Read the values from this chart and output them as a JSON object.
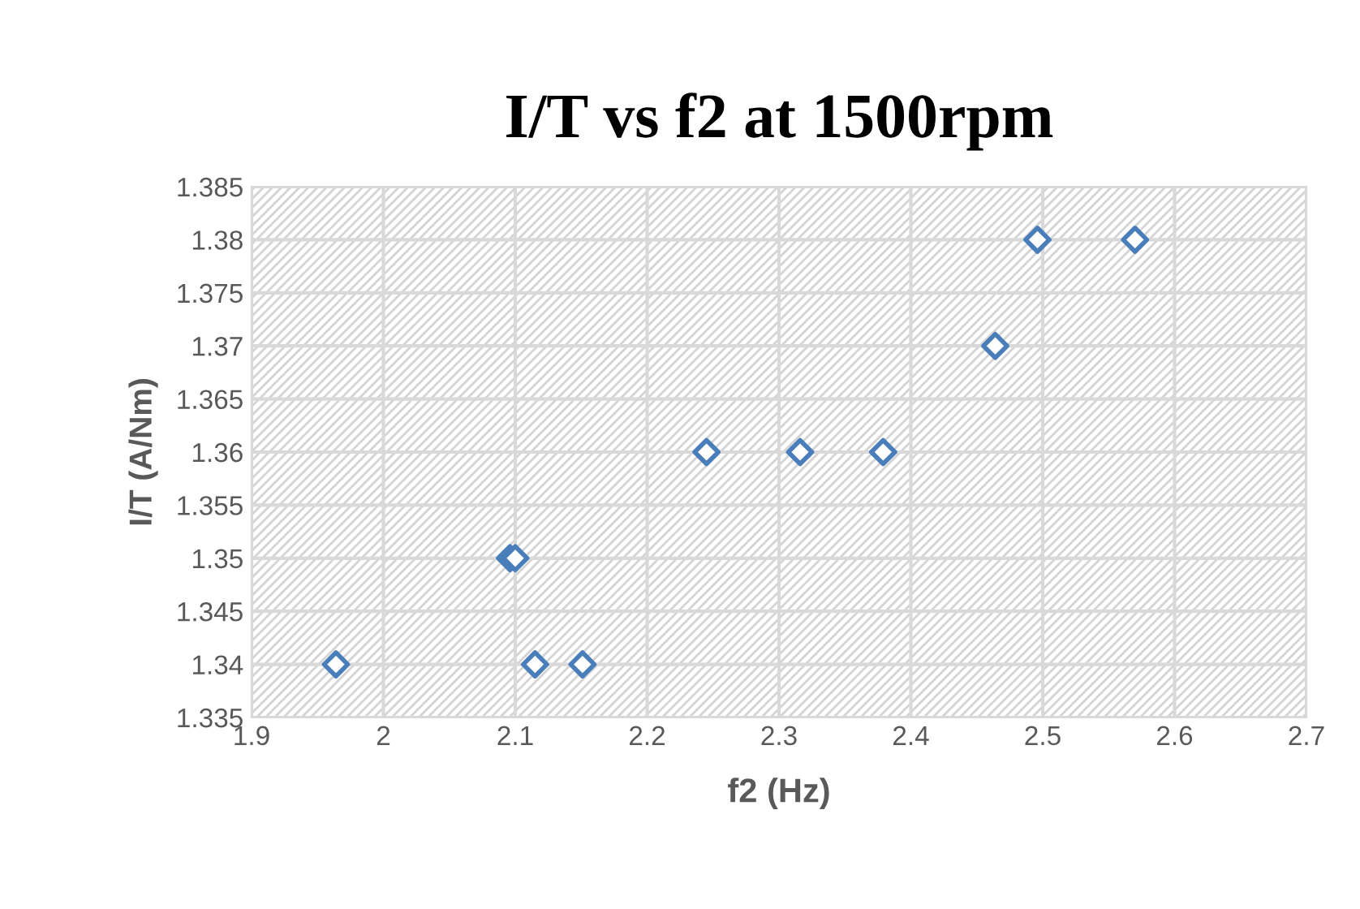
{
  "chart_data": {
    "type": "scatter",
    "title": "I/T vs f2 at 1500rpm",
    "xlabel": "f2 (Hz)",
    "ylabel": "I/T (A/Nm)",
    "x": [
      1.964,
      2.096,
      2.1,
      2.115,
      2.151,
      2.245,
      2.316,
      2.379,
      2.464,
      2.496,
      2.57
    ],
    "series": [
      {
        "color": "#4a7ebb",
        "values": [
          1.34,
          1.35,
          1.35,
          1.34,
          1.34,
          1.36,
          1.36,
          1.36,
          1.37,
          1.38,
          1.38
        ]
      }
    ],
    "xlim": [
      1.9,
      2.7
    ],
    "xticks": [
      1.9,
      2,
      2.1,
      2.2,
      2.3,
      2.4,
      2.5,
      2.6,
      2.7
    ],
    "ylim": [
      1.335,
      1.385
    ],
    "yticks": [
      1.335,
      1.34,
      1.345,
      1.35,
      1.355,
      1.36,
      1.365,
      1.37,
      1.375,
      1.38,
      1.385
    ],
    "grid": true,
    "marker": "diamond",
    "legend": false
  }
}
